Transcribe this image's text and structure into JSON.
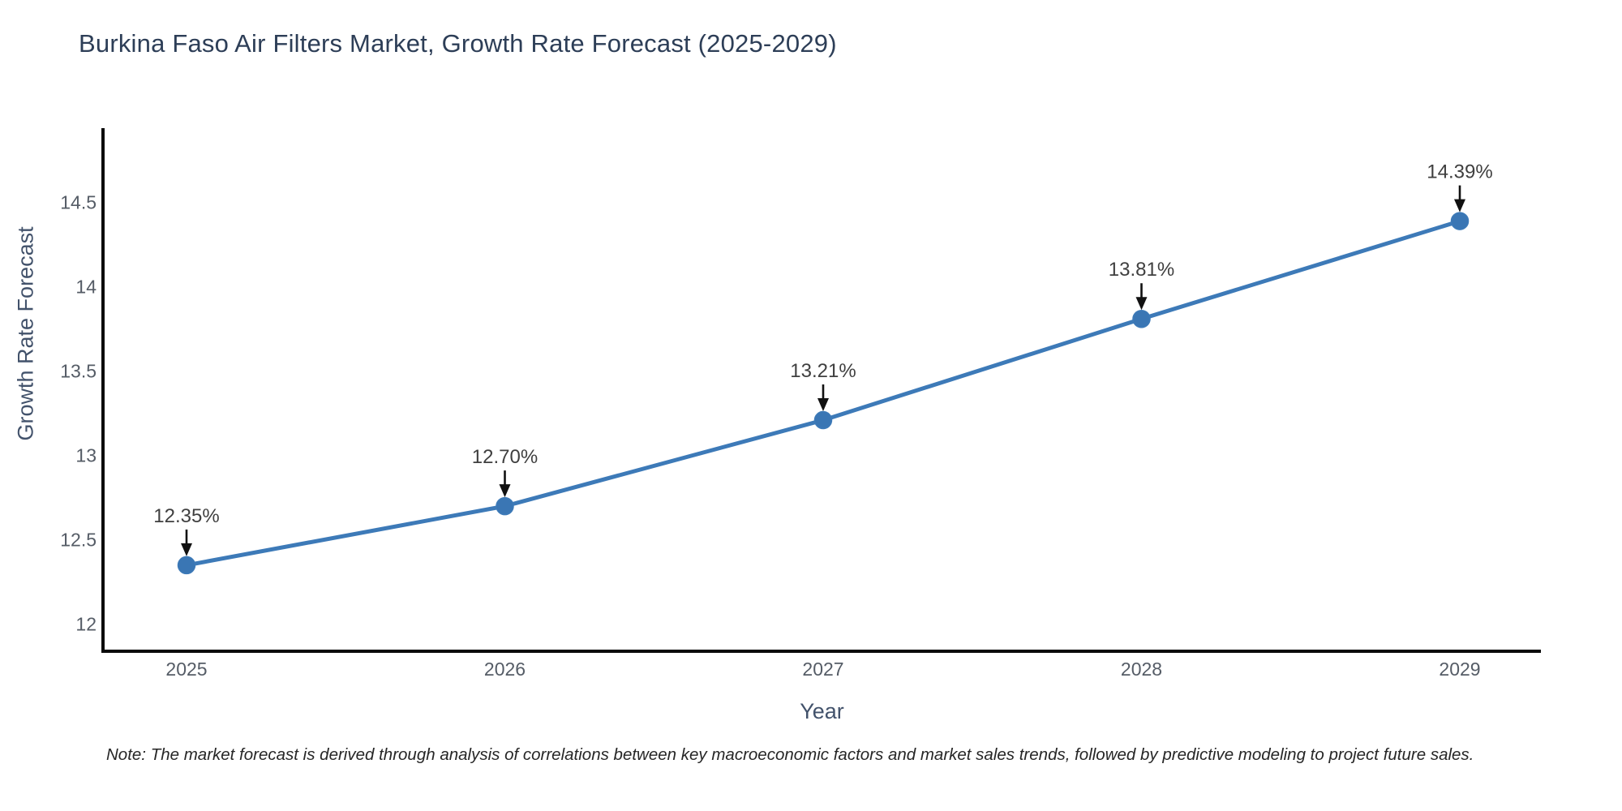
{
  "chart_data": {
    "type": "line",
    "title": "Burkina Faso Air Filters Market, Growth Rate Forecast (2025-2029)",
    "xlabel": "Year",
    "ylabel": "Growth Rate Forecast",
    "categories": [
      "2025",
      "2026",
      "2027",
      "2028",
      "2029"
    ],
    "values": [
      12.35,
      12.7,
      13.21,
      13.81,
      14.39
    ],
    "point_labels": [
      "12.35%",
      "12.70%",
      "13.21%",
      "13.81%",
      "14.39%"
    ],
    "yticks": [
      12,
      12.5,
      13,
      13.5,
      14,
      14.5
    ],
    "ylim": [
      11.84,
      14.95
    ],
    "grid": false,
    "legend": "none",
    "note": "Note: The market forecast is derived through analysis of correlations between key macroeconomic factors and market sales trends, followed by predictive modeling to project future sales.",
    "colors": {
      "line": "#3d7ab8",
      "marker": "#3a76b4",
      "axis": "#0a0a0a",
      "tick_label": "#555c66",
      "axis_title": "#42526b",
      "title": "#2d3e57",
      "annotation": "#3f3f3f",
      "arrow": "#111111",
      "background": "#ffffff"
    }
  }
}
